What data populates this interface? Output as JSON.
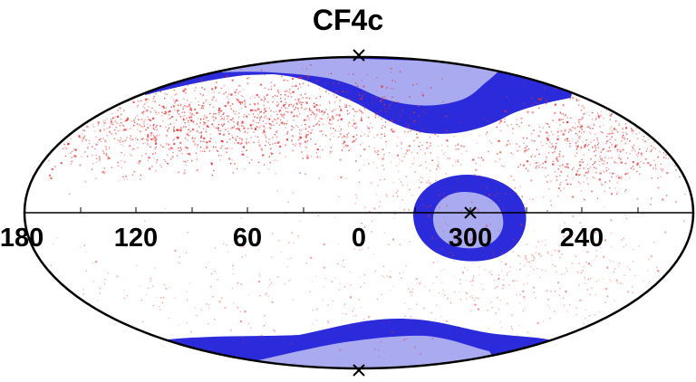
{
  "chart_data": {
    "type": "scatter",
    "title": "CF4c",
    "projection": "aitoff-hammer all-sky",
    "xlabel": "",
    "ylabel": "",
    "x_tick_labels": [
      "180",
      "120",
      "60",
      "0",
      "300",
      "240"
    ],
    "x_tick_values_deg": [
      180,
      120,
      60,
      0,
      300,
      240
    ],
    "markers": [
      {
        "label": "pole-north",
        "lon": 0,
        "lat": 90
      },
      {
        "label": "center-marker",
        "lon": 300,
        "lat": 0
      },
      {
        "label": "pole-south",
        "lon": 0,
        "lat": -90
      }
    ],
    "regions": [
      {
        "name": "north-band",
        "color": "#2b2bdc"
      },
      {
        "name": "center-ring",
        "color": "#2b2bdc"
      },
      {
        "name": "south-band",
        "color": "#2b2bdc"
      }
    ],
    "colors": {
      "points": "#e83030",
      "dark_blue": "#2b2bdc",
      "light_blue": "#a9aaf0",
      "outline": "#000000"
    },
    "grid": false
  }
}
